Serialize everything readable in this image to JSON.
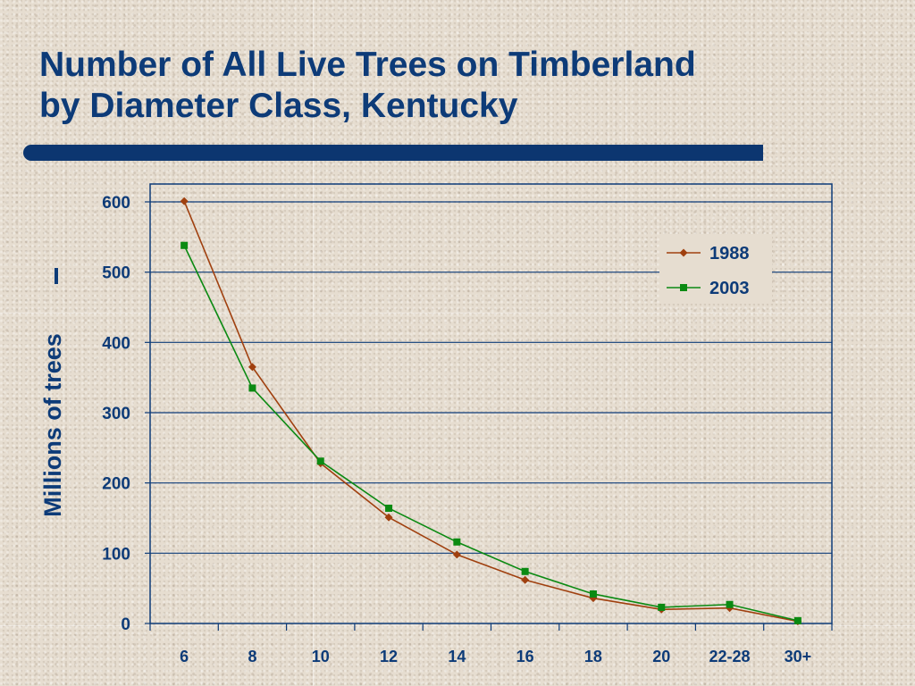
{
  "slide": {
    "title_line1": "Number of All Live Trees on Timberland",
    "title_line2": "by Diameter Class, Kentucky",
    "accent_color": "#0c3670",
    "text_color": "#0d3b78"
  },
  "chart_data": {
    "type": "line",
    "title": "",
    "xlabel": "",
    "ylabel": "Millions of trees",
    "categories": [
      "6",
      "8",
      "10",
      "12",
      "14",
      "16",
      "18",
      "20",
      "22-28",
      "30+"
    ],
    "ylim": [
      0,
      600
    ],
    "yticks": [
      "0",
      "100",
      "200",
      "300",
      "400",
      "500",
      "600"
    ],
    "grid": true,
    "legend_position": "top-right",
    "series": [
      {
        "name": "1988",
        "color": "#a0400f",
        "marker": "diamond",
        "values": [
          601,
          365,
          228,
          151,
          98,
          62,
          36,
          20,
          22,
          3
        ]
      },
      {
        "name": "2003",
        "color": "#0b8a12",
        "marker": "square",
        "values": [
          538,
          335,
          231,
          164,
          116,
          74,
          42,
          23,
          27,
          4
        ]
      }
    ]
  }
}
